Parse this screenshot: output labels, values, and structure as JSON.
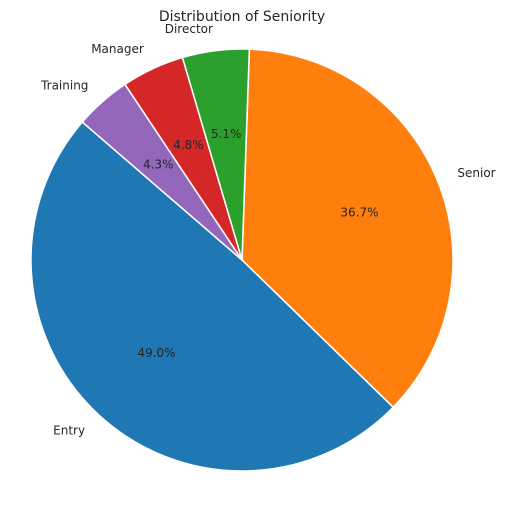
{
  "chart_data": {
    "type": "pie",
    "title": "Distribution of Seniority",
    "slices": [
      {
        "label": "Senior",
        "value": 36.7,
        "pct_label": "36.7%",
        "color": "#ff7f0e"
      },
      {
        "label": "Entry",
        "value": 49.0,
        "pct_label": "49.0%",
        "color": "#1f77b4"
      },
      {
        "label": "Training",
        "value": 4.3,
        "pct_label": "4.3%",
        "color": "#9467bd"
      },
      {
        "label": "Manager",
        "value": 4.8,
        "pct_label": "4.8%",
        "color": "#d62728"
      },
      {
        "label": "Director",
        "value": 5.1,
        "pct_label": "5.1%",
        "color": "#2ca02c"
      }
    ],
    "start_angle_deg": 88,
    "direction": "clockwise",
    "legend": "none"
  }
}
